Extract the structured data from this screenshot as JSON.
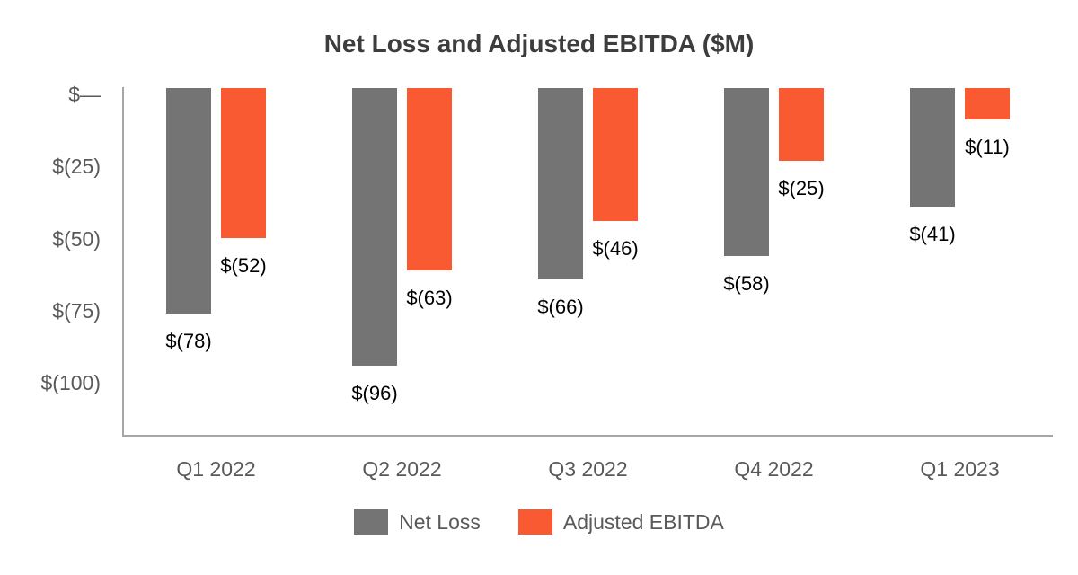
{
  "chart_data": {
    "type": "bar",
    "title": "Net Loss and Adjusted EBITDA ($M)",
    "xlabel": "",
    "ylabel": "",
    "categories": [
      "Q1 2022",
      "Q2 2022",
      "Q3 2022",
      "Q4 2022",
      "Q1 2023"
    ],
    "series": [
      {
        "name": "Net Loss",
        "color": "#747474",
        "values": [
          -78,
          -96,
          -66,
          -58,
          -41
        ],
        "labels": [
          "$(78)",
          "$(96)",
          "$(66)",
          "$(58)",
          "$(41)"
        ]
      },
      {
        "name": "Adjusted EBITDA",
        "color": "#FA5A32",
        "values": [
          -52,
          -63,
          -46,
          -25,
          -11
        ],
        "labels": [
          "$(52)",
          "$(63)",
          "$(46)",
          "$(25)",
          "$(11)"
        ]
      }
    ],
    "y_ticks": [
      {
        "value": 0,
        "label": "$—"
      },
      {
        "value": -25,
        "label": "$(25)"
      },
      {
        "value": -50,
        "label": "$(50)"
      },
      {
        "value": -75,
        "label": "$(75)"
      },
      {
        "value": -100,
        "label": "$(100)"
      }
    ],
    "ylim": [
      -120,
      0
    ],
    "grid": false,
    "legend_position": "bottom",
    "colors": {
      "title_text": "#3d3d3d",
      "axis_line": "#a6a6a6",
      "tick_text": "#595959",
      "data_label_text": "#000000"
    }
  }
}
